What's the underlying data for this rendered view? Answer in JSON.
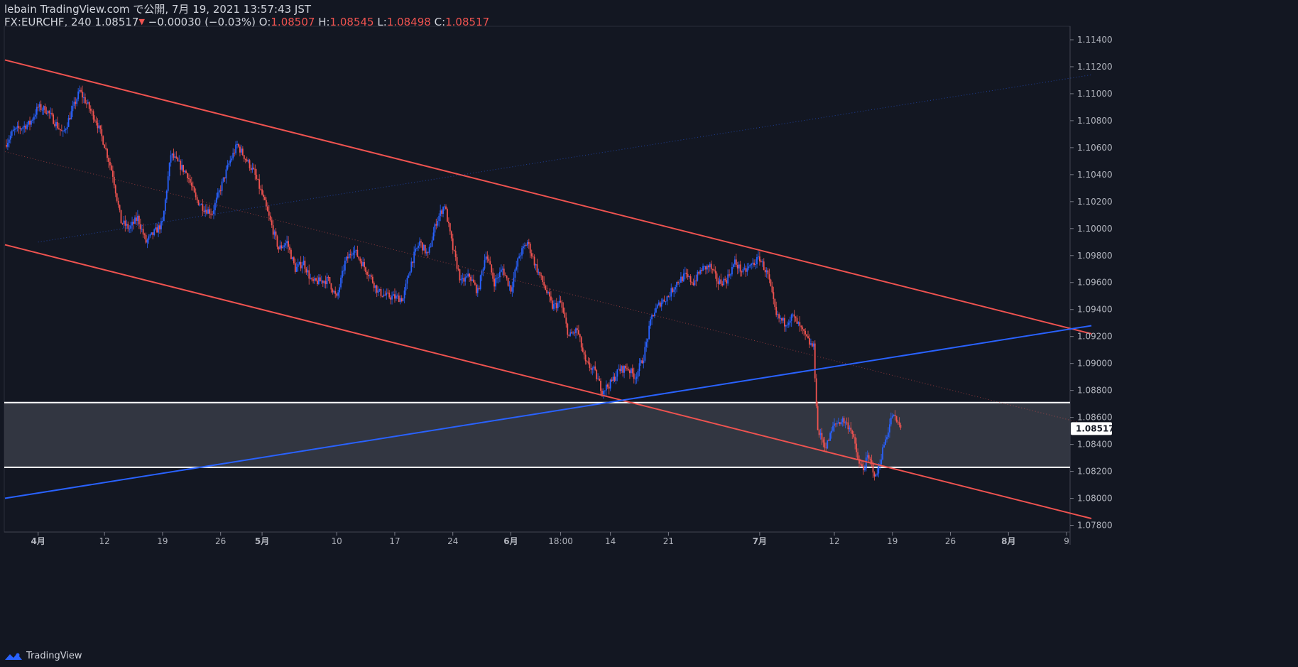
{
  "header": {
    "line1": "lebain TradingView.com で公開, 7月 19, 2021 13:57:43 JST",
    "symbol": "FX:EURCHF, 240",
    "last": "1.08517",
    "change": "−0.00030 (−0.03%)",
    "o_label": "O:",
    "o_value": "1.08507",
    "h_label": "H:",
    "h_value": "1.08545",
    "l_label": "L:",
    "l_value": "1.08498",
    "c_label": "C:",
    "c_value": "1.08517"
  },
  "footer": {
    "brand": "TradingView"
  },
  "colors": {
    "background": "#131722",
    "up": "#2962ff",
    "down": "#ef5350",
    "zone": "#363a45",
    "zone_border": "#ffffff",
    "price_label_bg": "#ffffff"
  },
  "chart_data": {
    "type": "candlestick",
    "symbol": "FX:EURCHF",
    "interval": "240",
    "ylim": [
      1.0775,
      1.115
    ],
    "yticks": [
      "1.07800",
      "1.08000",
      "1.08200",
      "1.08400",
      "1.08600",
      "1.08800",
      "1.09000",
      "1.09200",
      "1.09400",
      "1.09600",
      "1.09800",
      "1.10000",
      "1.10200",
      "1.10400",
      "1.10600",
      "1.10800",
      "1.11000",
      "1.11200",
      "1.11400"
    ],
    "xticks": [
      {
        "label": "4月",
        "day": 4,
        "bold": true
      },
      {
        "label": "12",
        "day": 12
      },
      {
        "label": "19",
        "day": 19
      },
      {
        "label": "26",
        "day": 26
      },
      {
        "label": "5月",
        "day": 31,
        "bold": true
      },
      {
        "label": "10",
        "day": 40
      },
      {
        "label": "17",
        "day": 47
      },
      {
        "label": "24",
        "day": 54
      },
      {
        "label": "6月",
        "day": 61,
        "bold": true
      },
      {
        "label": "18:00",
        "day": 67
      },
      {
        "label": "14",
        "day": 73
      },
      {
        "label": "21",
        "day": 80
      },
      {
        "label": "7月",
        "day": 91,
        "bold": true
      },
      {
        "label": "12",
        "day": 100
      },
      {
        "label": "19",
        "day": 107
      },
      {
        "label": "26",
        "day": 114
      },
      {
        "label": "8月",
        "day": 121,
        "bold": true
      },
      {
        "label": "9",
        "day": 128
      }
    ],
    "last_price": "1.08517",
    "grid": false,
    "price_path": [
      [
        0,
        1.1062
      ],
      [
        1,
        1.1072
      ],
      [
        3,
        1.1078
      ],
      [
        4,
        1.109
      ],
      [
        5,
        1.1088
      ],
      [
        7,
        1.107
      ],
      [
        9,
        1.1102
      ],
      [
        11,
        1.108
      ],
      [
        12,
        1.1062
      ],
      [
        13,
        1.104
      ],
      [
        14,
        1.1005
      ],
      [
        15,
        1.1
      ],
      [
        16,
        1.1008
      ],
      [
        17,
        1.099
      ],
      [
        19,
        1.1004
      ],
      [
        20,
        1.1055
      ],
      [
        22,
        1.104
      ],
      [
        23,
        1.1022
      ],
      [
        24,
        1.1015
      ],
      [
        25,
        1.1012
      ],
      [
        27,
        1.1048
      ],
      [
        28,
        1.1062
      ],
      [
        29,
        1.1052
      ],
      [
        30,
        1.1042
      ],
      [
        31,
        1.1025
      ],
      [
        32,
        1.1005
      ],
      [
        33,
        1.0985
      ],
      [
        34,
        1.099
      ],
      [
        35,
        1.097
      ],
      [
        36,
        1.0975
      ],
      [
        37,
        1.096
      ],
      [
        39,
        1.0962
      ],
      [
        40,
        1.0948
      ],
      [
        41,
        1.0975
      ],
      [
        42,
        1.0985
      ],
      [
        44,
        1.0965
      ],
      [
        45,
        1.0953
      ],
      [
        46,
        1.095
      ],
      [
        48,
        1.0948
      ],
      [
        49,
        1.0975
      ],
      [
        50,
        1.099
      ],
      [
        51,
        1.098
      ],
      [
        52,
        1.1005
      ],
      [
        53,
        1.1018
      ],
      [
        54,
        1.0985
      ],
      [
        55,
        1.096
      ],
      [
        56,
        1.0965
      ],
      [
        57,
        1.0953
      ],
      [
        58,
        1.0982
      ],
      [
        59,
        1.096
      ],
      [
        60,
        1.097
      ],
      [
        61,
        1.0955
      ],
      [
        62,
        1.098
      ],
      [
        63,
        1.099
      ],
      [
        64,
        1.0972
      ],
      [
        65,
        1.0958
      ],
      [
        66,
        1.0942
      ],
      [
        67,
        1.0945
      ],
      [
        68,
        1.092
      ],
      [
        69,
        1.0925
      ],
      [
        70,
        1.09
      ],
      [
        71,
        1.0895
      ],
      [
        72,
        1.088
      ],
      [
        73,
        1.0885
      ],
      [
        74,
        1.0895
      ],
      [
        75,
        1.0897
      ],
      [
        76,
        1.089
      ],
      [
        77,
        1.0905
      ],
      [
        78,
        1.0935
      ],
      [
        79,
        1.0945
      ],
      [
        80,
        1.095
      ],
      [
        81,
        1.096
      ],
      [
        82,
        1.0965
      ],
      [
        83,
        1.096
      ],
      [
        84,
        1.097
      ],
      [
        85,
        1.0972
      ],
      [
        86,
        1.096
      ],
      [
        87,
        1.0962
      ],
      [
        88,
        1.0975
      ],
      [
        89,
        1.0967
      ],
      [
        90,
        1.0973
      ],
      [
        91,
        1.0978
      ],
      [
        92,
        1.0965
      ],
      [
        93,
        1.0935
      ],
      [
        94,
        1.093
      ],
      [
        95,
        1.0935
      ],
      [
        96,
        1.0925
      ],
      [
        97,
        1.0915
      ],
      [
        97.5,
        1.0912
      ],
      [
        98,
        1.085
      ],
      [
        99,
        1.0838
      ],
      [
        100,
        1.0855
      ],
      [
        101,
        1.0858
      ],
      [
        102,
        1.0852
      ],
      [
        103,
        1.0825
      ],
      [
        103.5,
        1.0822
      ],
      [
        104,
        1.083
      ],
      [
        104.5,
        1.0825
      ],
      [
        105,
        1.0815
      ],
      [
        106,
        1.084
      ],
      [
        107,
        1.0862
      ],
      [
        108,
        1.0852
      ]
    ],
    "lines": [
      {
        "name": "channel-top",
        "color": "#ef5350",
        "p1": [
          0,
          1.1125
        ],
        "p2": [
          131,
          1.0922
        ]
      },
      {
        "name": "channel-bottom",
        "color": "#ef5350",
        "p1": [
          0,
          1.0988
        ],
        "p2": [
          131,
          1.0785
        ]
      },
      {
        "name": "channel-mid",
        "color": "#ef5350",
        "style": "dotted",
        "p1": [
          0,
          1.1057
        ],
        "p2": [
          131,
          1.0854
        ]
      },
      {
        "name": "blue-trendline",
        "color": "#2962ff",
        "p1": [
          0,
          1.08
        ],
        "p2": [
          131,
          1.0928
        ]
      },
      {
        "name": "blue-trendline-faint",
        "color": "#2962ff",
        "style": "dotted",
        "p1": [
          4,
          1.099
        ],
        "p2": [
          131,
          1.1114
        ]
      }
    ],
    "zone": {
      "top": 1.0871,
      "bottom": 1.0823
    }
  }
}
